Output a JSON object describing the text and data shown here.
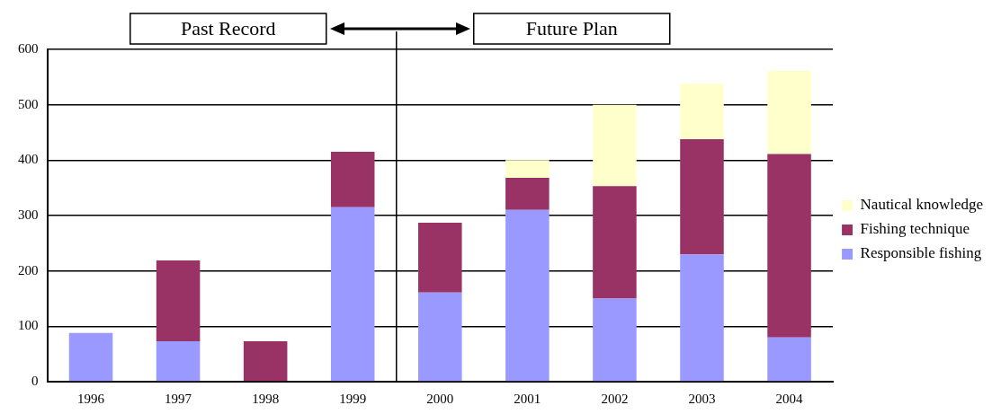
{
  "chart_data": {
    "type": "bar",
    "stacked": true,
    "categories": [
      "1996",
      "1997",
      "1998",
      "1999",
      "2000",
      "2001",
      "2002",
      "2003",
      "2004"
    ],
    "series": [
      {
        "name": "Responsible fishing",
        "color": "#9999ff",
        "values": [
          88,
          73,
          null,
          315,
          161,
          310,
          150,
          230,
          80
        ]
      },
      {
        "name": "Fishing technique",
        "color": "#993366",
        "values": [
          null,
          146,
          73,
          100,
          126,
          58,
          203,
          208,
          331
        ]
      },
      {
        "name": "Nautical knowledge",
        "color": "#ffffcc",
        "values": [
          null,
          null,
          null,
          null,
          null,
          32,
          147,
          100,
          150
        ]
      }
    ],
    "ylim": [
      0,
      600
    ],
    "yticks": [
      0,
      100,
      200,
      300,
      400,
      500,
      600
    ],
    "grid": "y",
    "legend": "right",
    "annotations": [
      "Past Record",
      "Future Plan"
    ]
  }
}
